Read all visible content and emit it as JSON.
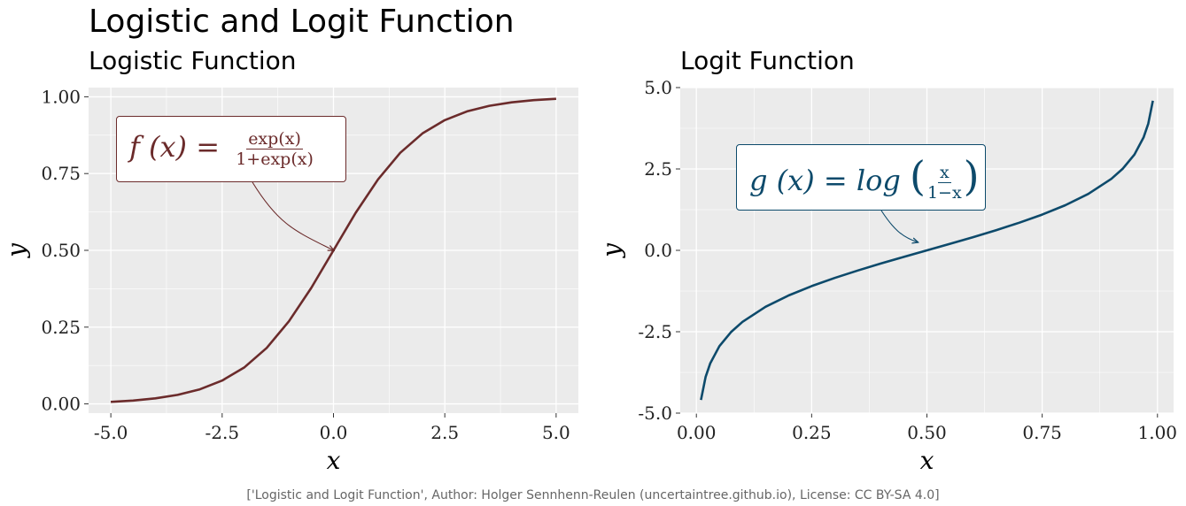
{
  "title": "Logistic and Logit Function",
  "caption": "['Logistic and Logit Function', Author: Holger Sennhenn-Reulen (uncertaintree.github.io), License: CC BY-SA 4.0]",
  "colors": {
    "logistic": "#6b2b2b",
    "logit": "#0d4a6b",
    "panel_bg": "#ebebeb",
    "grid": "#ffffff"
  },
  "chart_data": [
    {
      "type": "line",
      "title": "Logistic Function",
      "xlabel": "x",
      "ylabel": "y",
      "xlim": [
        -5.5,
        5.5
      ],
      "ylim": [
        -0.03,
        1.03
      ],
      "xticks": [
        -5.0,
        -2.5,
        0.0,
        2.5,
        5.0
      ],
      "xtick_labels": [
        "-5.0",
        "-2.5",
        "0.0",
        "2.5",
        "5.0"
      ],
      "yticks": [
        0.0,
        0.25,
        0.5,
        0.75,
        1.0
      ],
      "ytick_labels": [
        "0.00",
        "0.25",
        "0.50",
        "0.75",
        "1.00"
      ],
      "x": [
        -5.0,
        -4.5,
        -4.0,
        -3.5,
        -3.0,
        -2.5,
        -2.0,
        -1.5,
        -1.0,
        -0.5,
        0.0,
        0.5,
        1.0,
        1.5,
        2.0,
        2.5,
        3.0,
        3.5,
        4.0,
        4.5,
        5.0
      ],
      "y": [
        0.0067,
        0.011,
        0.018,
        0.0293,
        0.0474,
        0.0759,
        0.1192,
        0.1824,
        0.2689,
        0.3775,
        0.5,
        0.6225,
        0.7311,
        0.8176,
        0.8808,
        0.9241,
        0.9526,
        0.9707,
        0.982,
        0.989,
        0.9933
      ],
      "grid": true,
      "annotation": {
        "lhs": "f (x) = ",
        "numerator": "exp(x)",
        "denominator": "1+exp(x)",
        "arrow_to": [
          0.0,
          0.5
        ]
      }
    },
    {
      "type": "line",
      "title": "Logit Function",
      "xlabel": "x",
      "ylabel": "y",
      "xlim": [
        -0.035,
        1.035
      ],
      "ylim": [
        -5.0,
        5.0
      ],
      "xticks": [
        0.0,
        0.25,
        0.5,
        0.75,
        1.0
      ],
      "xtick_labels": [
        "0.00",
        "0.25",
        "0.50",
        "0.75",
        "1.00"
      ],
      "yticks": [
        -5.0,
        -2.5,
        0.0,
        2.5,
        5.0
      ],
      "ytick_labels": [
        "-5.0",
        "-2.5",
        "0.0",
        "2.5",
        "5.0"
      ],
      "x": [
        0.01,
        0.02,
        0.03,
        0.05,
        0.075,
        0.1,
        0.15,
        0.2,
        0.25,
        0.3,
        0.35,
        0.4,
        0.45,
        0.5,
        0.55,
        0.6,
        0.65,
        0.7,
        0.75,
        0.8,
        0.85,
        0.9,
        0.925,
        0.95,
        0.97,
        0.98,
        0.99
      ],
      "y": [
        -4.595,
        -3.892,
        -3.476,
        -2.944,
        -2.512,
        -2.197,
        -1.735,
        -1.386,
        -1.099,
        -0.847,
        -0.619,
        -0.405,
        -0.201,
        0.0,
        0.201,
        0.405,
        0.619,
        0.847,
        1.099,
        1.386,
        1.735,
        2.197,
        2.512,
        2.944,
        3.476,
        3.892,
        4.595
      ],
      "grid": true,
      "annotation": {
        "lhs": "g (x) = log ",
        "numerator": "x",
        "denominator": "1−x",
        "arrow_to": [
          0.48,
          0.25
        ]
      }
    }
  ]
}
